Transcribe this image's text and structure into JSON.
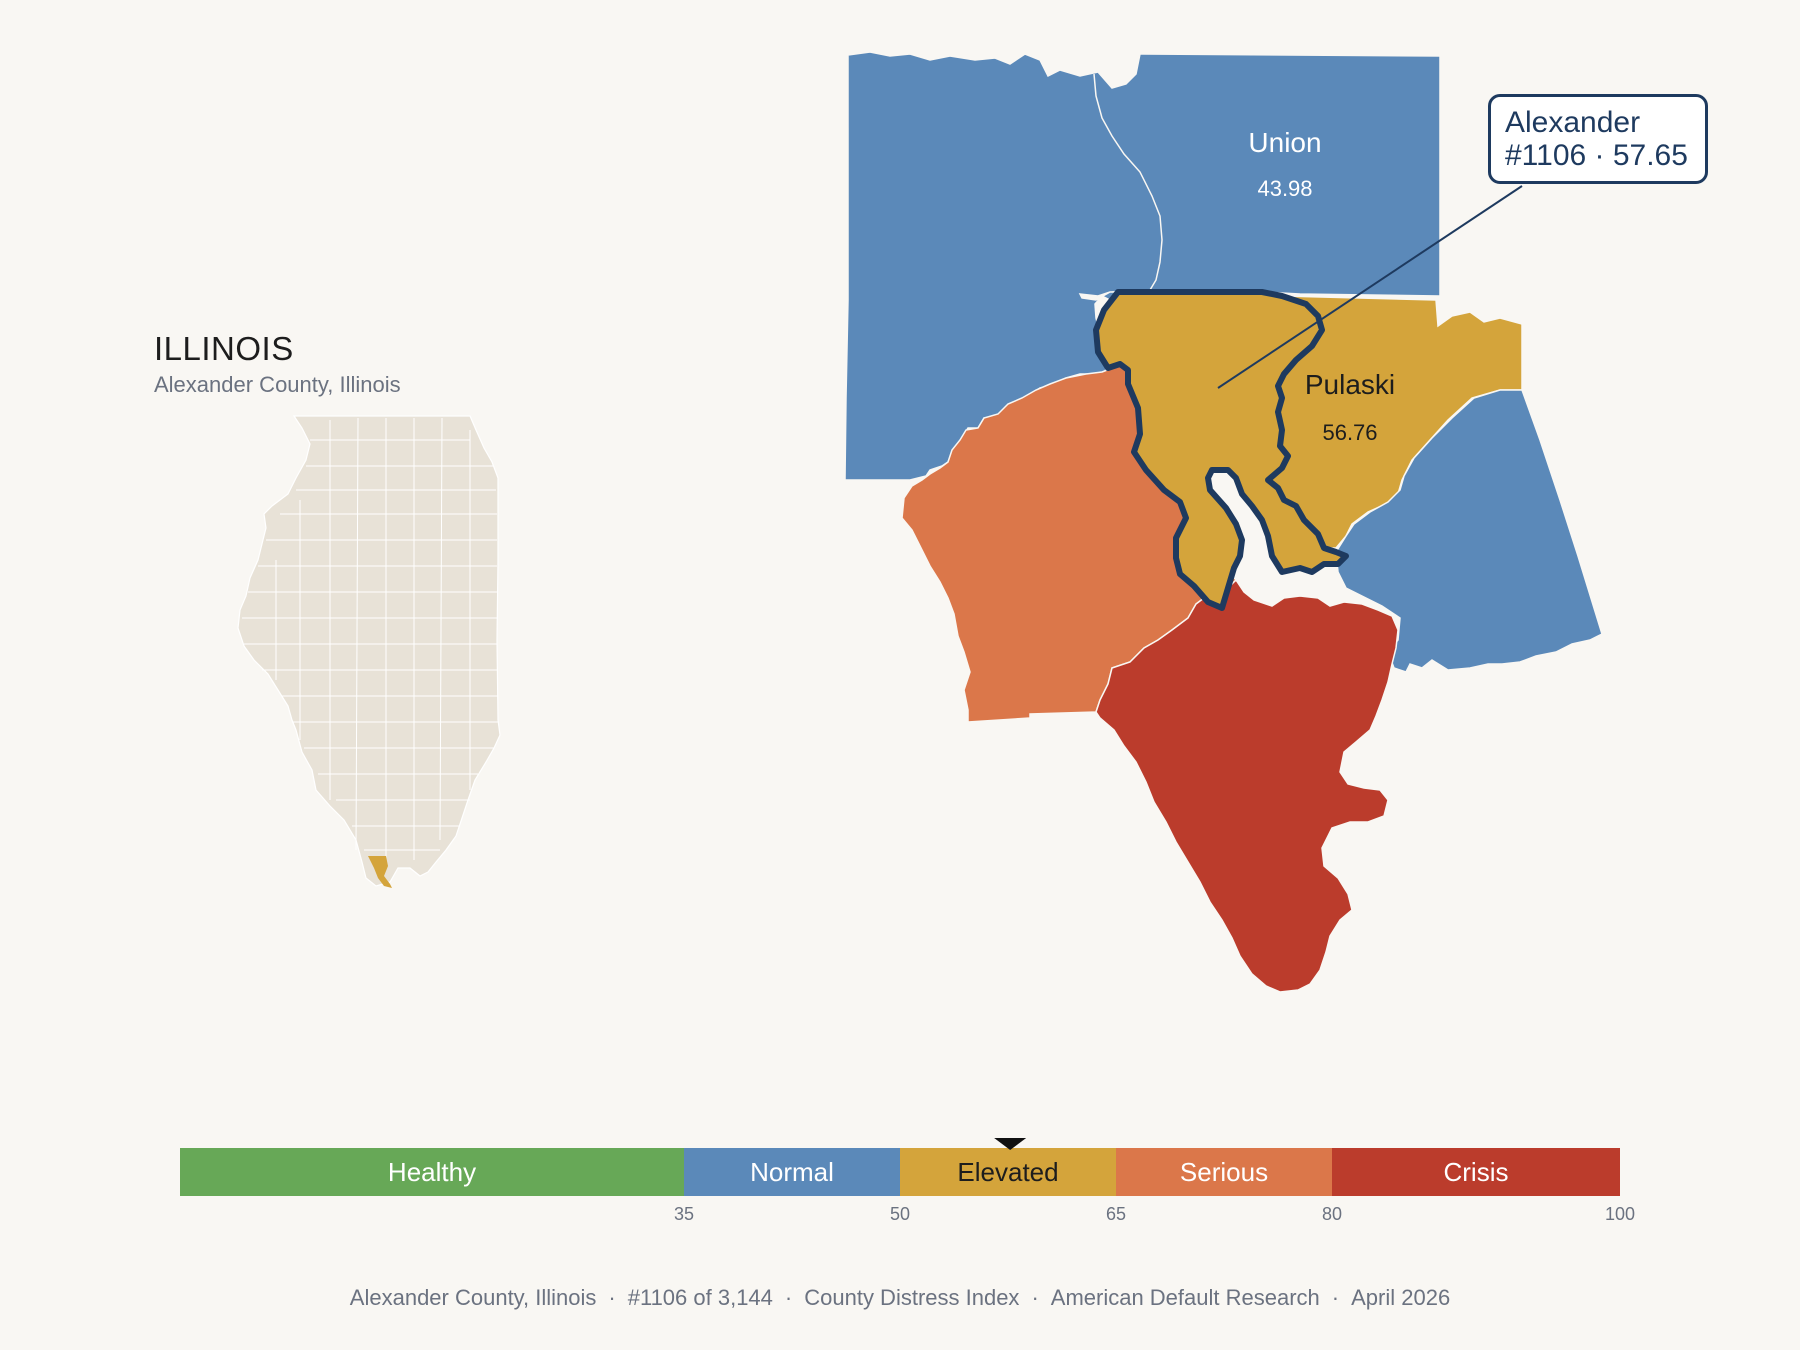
{
  "inset": {
    "state_title": "ILLINOIS",
    "subtitle": "Alexander County, Illinois"
  },
  "colors": {
    "healthy": "#67a857",
    "normal": "#5b89b9",
    "elevated": "#d4a43b",
    "serious": "#db774a",
    "crisis": "#bb3c2c",
    "highlight_outline": "#1e3a5f",
    "state_fill": "#e8e2d7"
  },
  "counties": [
    {
      "name": "Union",
      "value": "43.98",
      "category": "normal"
    },
    {
      "name": "Pulaski",
      "value": "56.76",
      "category": "elevated"
    },
    {
      "name": "Alexander",
      "value": "57.65",
      "category": "elevated"
    }
  ],
  "callout": {
    "name": "Alexander",
    "rank_value": "#1106 · 57.65"
  },
  "legend": {
    "bands": [
      {
        "label": "Healthy",
        "from": 0,
        "to": 35,
        "category": "healthy"
      },
      {
        "label": "Normal",
        "from": 35,
        "to": 50,
        "category": "normal"
      },
      {
        "label": "Elevated",
        "from": 50,
        "to": 65,
        "category": "elevated"
      },
      {
        "label": "Serious",
        "from": 65,
        "to": 80,
        "category": "serious"
      },
      {
        "label": "Crisis",
        "from": 80,
        "to": 100,
        "category": "crisis"
      }
    ],
    "ticks": [
      "35",
      "50",
      "65",
      "80",
      "100"
    ],
    "marker_value": 57.65
  },
  "footer": {
    "county": "Alexander County, Illinois",
    "rank": "#1106 of 3,144",
    "index": "County Distress Index",
    "source": "American Default Research",
    "date": "April 2026"
  }
}
